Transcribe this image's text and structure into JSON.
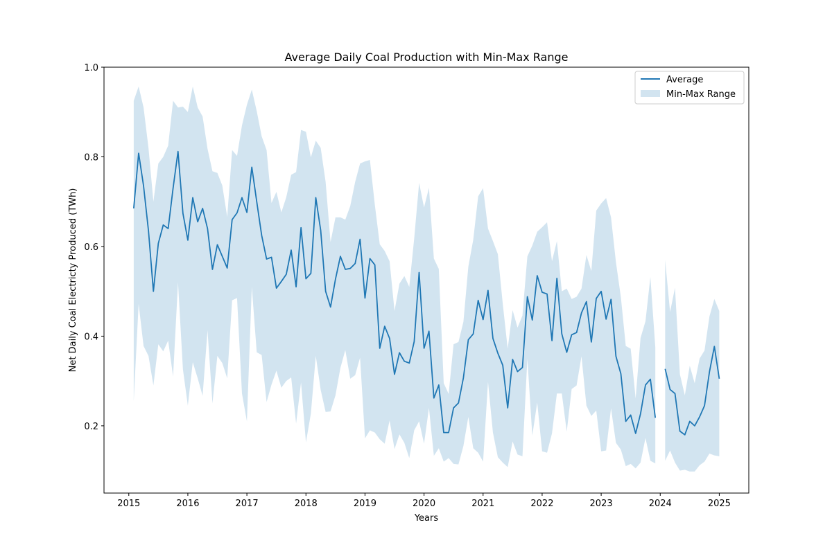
{
  "chart_data": {
    "type": "line",
    "title": "Average Daily Coal Production with Min-Max Range",
    "xlabel": "Years",
    "ylabel": "Net Daily Coal Electricty Produced (TWh)",
    "xlim": [
      2014.58,
      2025.5
    ],
    "ylim": [
      0.05,
      1.0
    ],
    "x_ticks": [
      2015,
      2016,
      2017,
      2018,
      2019,
      2020,
      2021,
      2022,
      2023,
      2024,
      2025
    ],
    "y_ticks": [
      0.2,
      0.4,
      0.6,
      0.8,
      1.0
    ],
    "grid": false,
    "legend_position": "top-right",
    "colors": {
      "line": "#1f77b4",
      "band": "#1f77b4"
    },
    "legend": [
      {
        "label": "Average",
        "kind": "line"
      },
      {
        "label": "Min-Max Range",
        "kind": "band"
      }
    ],
    "series": [
      {
        "name": "Average",
        "segments": [
          {
            "start_year": 2015,
            "start_month": 2,
            "values": [
              0.685,
              0.808,
              0.735,
              0.635,
              0.5,
              0.607,
              0.648,
              0.64,
              0.73,
              0.812,
              0.674,
              0.614,
              0.709,
              0.655,
              0.685,
              0.64,
              0.549,
              0.604,
              0.578,
              0.552,
              0.66,
              0.675,
              0.709,
              0.676,
              0.777,
              0.7,
              0.625,
              0.572,
              0.576,
              0.507,
              0.522,
              0.538,
              0.592,
              0.51,
              0.642,
              0.528,
              0.54,
              0.709,
              0.636,
              0.5,
              0.465,
              0.527,
              0.578,
              0.549,
              0.551,
              0.562,
              0.616,
              0.485,
              0.573,
              0.559,
              0.373,
              0.422,
              0.395,
              0.315,
              0.363,
              0.344,
              0.34,
              0.388,
              0.542,
              0.373,
              0.411,
              0.262,
              0.291,
              0.185,
              0.185,
              0.24,
              0.251,
              0.307,
              0.392,
              0.405,
              0.48,
              0.437,
              0.502,
              0.395,
              0.362,
              0.335,
              0.24,
              0.348,
              0.321,
              0.33,
              0.488,
              0.436,
              0.535,
              0.498,
              0.494,
              0.39,
              0.529,
              0.405,
              0.364,
              0.403,
              0.408,
              0.452,
              0.477,
              0.387,
              0.484,
              0.5,
              0.438,
              0.482,
              0.355,
              0.316,
              0.21,
              0.224,
              0.183,
              0.227,
              0.291,
              0.304,
              0.218
            ]
          },
          {
            "start_year": 2024,
            "start_month": 2,
            "values": [
              0.327,
              0.281,
              0.272,
              0.188,
              0.18,
              0.21,
              0.2,
              0.22,
              0.245,
              0.32,
              0.377,
              0.305
            ]
          }
        ]
      },
      {
        "name": "Min-Max Range",
        "segments": [
          {
            "start_year": 2015,
            "start_month": 2,
            "max": [
              0.925,
              0.957,
              0.91,
              0.82,
              0.7,
              0.785,
              0.8,
              0.825,
              0.925,
              0.91,
              0.912,
              0.9,
              0.957,
              0.91,
              0.89,
              0.818,
              0.768,
              0.764,
              0.736,
              0.666,
              0.815,
              0.802,
              0.87,
              0.916,
              0.95,
              0.902,
              0.846,
              0.815,
              0.697,
              0.722,
              0.676,
              0.71,
              0.76,
              0.766,
              0.86,
              0.856,
              0.799,
              0.836,
              0.82,
              0.744,
              0.61,
              0.665,
              0.665,
              0.66,
              0.69,
              0.744,
              0.785,
              0.79,
              0.793,
              0.693,
              0.605,
              0.59,
              0.567,
              0.456,
              0.517,
              0.534,
              0.51,
              0.618,
              0.742,
              0.687,
              0.731,
              0.573,
              0.55,
              0.295,
              0.271,
              0.382,
              0.387,
              0.432,
              0.555,
              0.615,
              0.712,
              0.73,
              0.64,
              0.612,
              0.583,
              0.472,
              0.372,
              0.458,
              0.419,
              0.446,
              0.578,
              0.602,
              0.633,
              0.643,
              0.654,
              0.567,
              0.612,
              0.5,
              0.506,
              0.483,
              0.488,
              0.506,
              0.581,
              0.545,
              0.68,
              0.696,
              0.708,
              0.665,
              0.565,
              0.487,
              0.378,
              0.372,
              0.261,
              0.396,
              0.433,
              0.532,
              0.375
            ],
            "min": [
              0.255,
              0.472,
              0.378,
              0.356,
              0.29,
              0.382,
              0.366,
              0.39,
              0.31,
              0.52,
              0.326,
              0.245,
              0.342,
              0.306,
              0.267,
              0.413,
              0.25,
              0.356,
              0.34,
              0.306,
              0.48,
              0.485,
              0.272,
              0.21,
              0.51,
              0.364,
              0.358,
              0.253,
              0.292,
              0.323,
              0.285,
              0.3,
              0.308,
              0.205,
              0.297,
              0.163,
              0.227,
              0.356,
              0.28,
              0.231,
              0.232,
              0.268,
              0.329,
              0.369,
              0.305,
              0.313,
              0.352,
              0.172,
              0.19,
              0.185,
              0.17,
              0.16,
              0.212,
              0.148,
              0.181,
              0.162,
              0.128,
              0.19,
              0.21,
              0.16,
              0.24,
              0.133,
              0.15,
              0.12,
              0.128,
              0.115,
              0.114,
              0.155,
              0.22,
              0.15,
              0.14,
              0.12,
              0.298,
              0.185,
              0.13,
              0.118,
              0.108,
              0.165,
              0.136,
              0.132,
              0.35,
              0.178,
              0.252,
              0.143,
              0.14,
              0.183,
              0.272,
              0.272,
              0.187,
              0.282,
              0.29,
              0.355,
              0.245,
              0.222,
              0.234,
              0.143,
              0.145,
              0.239,
              0.162,
              0.147,
              0.11,
              0.115,
              0.105,
              0.118,
              0.173,
              0.122,
              0.116
            ]
          },
          {
            "start_year": 2024,
            "start_month": 2,
            "max": [
              0.57,
              0.454,
              0.508,
              0.315,
              0.268,
              0.334,
              0.295,
              0.35,
              0.368,
              0.444,
              0.483,
              0.456
            ],
            "min": [
              0.122,
              0.145,
              0.118,
              0.1,
              0.102,
              0.098,
              0.098,
              0.112,
              0.12,
              0.138,
              0.134,
              0.132
            ]
          }
        ]
      }
    ]
  }
}
